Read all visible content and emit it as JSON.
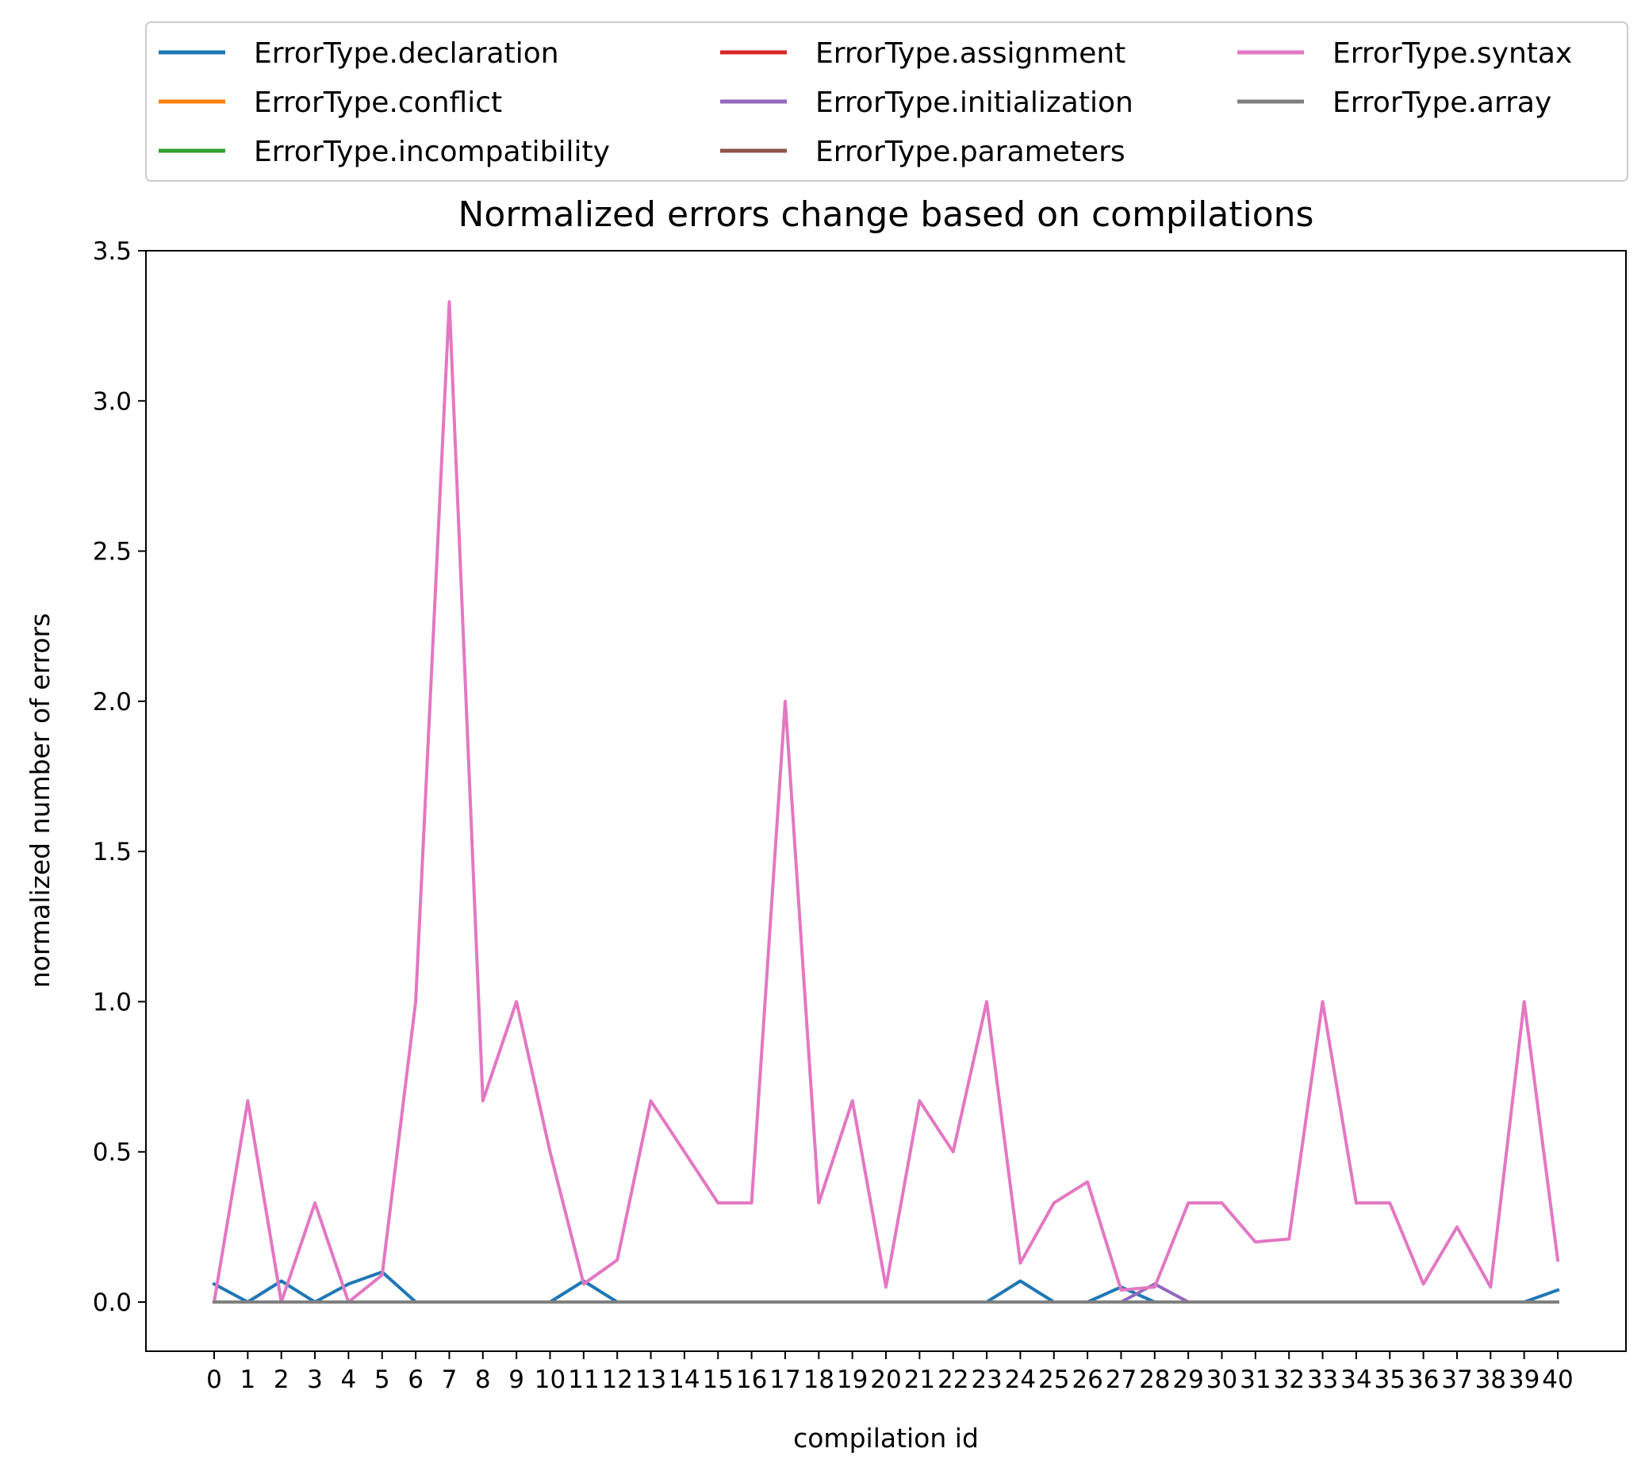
{
  "chart_data": {
    "type": "line",
    "title": "Normalized errors change based on compilations",
    "xlabel": "compilation id",
    "ylabel": "normalized number of errors",
    "ylim": [
      -0.16,
      3.5
    ],
    "yticks": [
      "0.0",
      "0.5",
      "1.0",
      "1.5",
      "2.0",
      "2.5",
      "3.0",
      "3.5"
    ],
    "ytick_values": [
      0,
      0.5,
      1.0,
      1.5,
      2.0,
      2.5,
      3.0,
      3.5
    ],
    "x": [
      0,
      1,
      2,
      3,
      4,
      5,
      6,
      7,
      8,
      9,
      10,
      11,
      12,
      13,
      14,
      15,
      16,
      17,
      18,
      19,
      20,
      21,
      22,
      23,
      24,
      25,
      26,
      27,
      28,
      29,
      30,
      31,
      32,
      33,
      34,
      35,
      36,
      37,
      38,
      39,
      40
    ],
    "xticks": [
      "0",
      "1",
      "2",
      "3",
      "4",
      "5",
      "6",
      "7",
      "8",
      "9",
      "10",
      "11",
      "12",
      "13",
      "14",
      "15",
      "16",
      "17",
      "18",
      "19",
      "20",
      "21",
      "22",
      "23",
      "24",
      "25",
      "26",
      "27",
      "28",
      "29",
      "30",
      "31",
      "32",
      "33",
      "34",
      "35",
      "36",
      "37",
      "38",
      "39",
      "40"
    ],
    "grid": false,
    "legend_position": "top, above plot (3 columns)",
    "series": [
      {
        "name": "ErrorType.declaration",
        "color": "#1f77b4",
        "values": [
          0.06,
          0,
          0.07,
          0,
          0.06,
          0.1,
          0,
          0,
          0,
          0,
          0,
          0.07,
          0,
          0,
          0,
          0,
          0,
          0,
          0,
          0,
          0,
          0,
          0,
          0,
          0.07,
          0,
          0,
          0.05,
          0,
          0,
          0,
          0,
          0,
          0,
          0,
          0,
          0,
          0,
          0,
          0,
          0.04
        ]
      },
      {
        "name": "ErrorType.conflict",
        "color": "#ff7f0e",
        "values": [
          0,
          0,
          0,
          0,
          0,
          0,
          0,
          0,
          0,
          0,
          0,
          0,
          0,
          0,
          0,
          0,
          0,
          0,
          0,
          0,
          0,
          0,
          0,
          0,
          0,
          0,
          0,
          0,
          0,
          0,
          0,
          0,
          0,
          0,
          0,
          0,
          0,
          0,
          0,
          0,
          0
        ]
      },
      {
        "name": "ErrorType.incompatibility",
        "color": "#2ca02c",
        "values": [
          0,
          0,
          0,
          0,
          0,
          0,
          0,
          0,
          0,
          0,
          0,
          0,
          0,
          0,
          0,
          0,
          0,
          0,
          0,
          0,
          0,
          0,
          0,
          0,
          0,
          0,
          0,
          0,
          0,
          0,
          0,
          0,
          0,
          0,
          0,
          0,
          0,
          0,
          0,
          0,
          0
        ]
      },
      {
        "name": "ErrorType.assignment",
        "color": "#d62728",
        "values": [
          0,
          0,
          0,
          0,
          0,
          0,
          0,
          0,
          0,
          0,
          0,
          0,
          0,
          0,
          0,
          0,
          0,
          0,
          0,
          0,
          0,
          0,
          0,
          0,
          0,
          0,
          0,
          0,
          0,
          0,
          0,
          0,
          0,
          0,
          0,
          0,
          0,
          0,
          0,
          0,
          0
        ]
      },
      {
        "name": "ErrorType.initialization",
        "color": "#9467bd",
        "values": [
          0,
          0,
          0,
          0,
          0,
          0,
          0,
          0,
          0,
          0,
          0,
          0,
          0,
          0,
          0,
          0,
          0,
          0,
          0,
          0,
          0,
          0,
          0,
          0,
          0,
          0,
          0,
          0,
          0.06,
          0,
          0,
          0,
          0,
          0,
          0,
          0,
          0,
          0,
          0,
          0,
          0
        ]
      },
      {
        "name": "ErrorType.parameters",
        "color": "#8c564b",
        "values": [
          0,
          0,
          0,
          0,
          0,
          0,
          0,
          0,
          0,
          0,
          0,
          0,
          0,
          0,
          0,
          0,
          0,
          0,
          0,
          0,
          0,
          0,
          0,
          0,
          0,
          0,
          0,
          0,
          0,
          0,
          0,
          0,
          0,
          0,
          0,
          0,
          0,
          0,
          0,
          0,
          0
        ]
      },
      {
        "name": "ErrorType.syntax",
        "color": "#e377c2",
        "values": [
          0,
          0.67,
          0,
          0.33,
          0,
          0.09,
          1.0,
          3.33,
          0.67,
          1.0,
          0.5,
          0.06,
          0.14,
          0.67,
          0.5,
          0.33,
          0.33,
          2.0,
          0.33,
          0.67,
          0.05,
          0.67,
          0.5,
          1.0,
          0.13,
          0.33,
          0.4,
          0.04,
          0.05,
          0.33,
          0.33,
          0.2,
          0.21,
          1.0,
          0.33,
          0.33,
          0.06,
          0.25,
          0.05,
          1.0,
          0.14
        ]
      },
      {
        "name": "ErrorType.array",
        "color": "#7f7f7f",
        "values": [
          0,
          0,
          0,
          0,
          0,
          0,
          0,
          0,
          0,
          0,
          0,
          0,
          0,
          0,
          0,
          0,
          0,
          0,
          0,
          0,
          0,
          0,
          0,
          0,
          0,
          0,
          0,
          0,
          0,
          0,
          0,
          0,
          0,
          0,
          0,
          0,
          0,
          0,
          0,
          0,
          0
        ]
      }
    ]
  }
}
